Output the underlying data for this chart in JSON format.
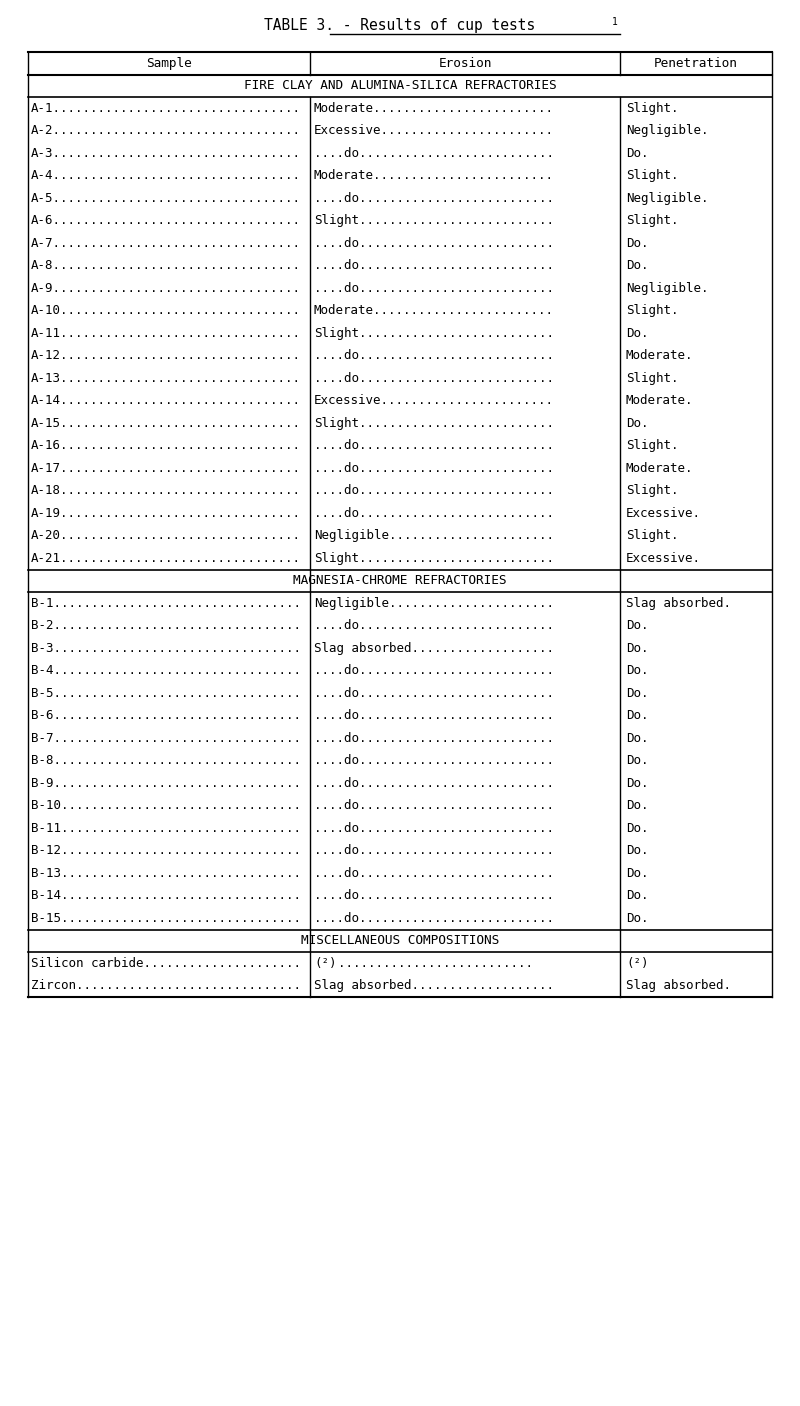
{
  "title": "TABLE 3. - Results of cup tests",
  "title_superscript": "1",
  "col_headers": [
    "Sample",
    "Erosion",
    "Penetration"
  ],
  "section1_header": "FIRE CLAY AND ALUMINA-SILICA REFRACTORIES",
  "section2_header": "MAGNESIA-CHROME REFRACTORIES",
  "section3_header": "MISCELLANEOUS COMPOSITIONS",
  "section1_rows": [
    [
      "A-1",
      "Moderate",
      "Slight."
    ],
    [
      "A-2",
      "Excessive",
      "Negligible."
    ],
    [
      "A-3",
      "....do",
      "Do."
    ],
    [
      "A-4",
      "Moderate",
      "Slight."
    ],
    [
      "A-5",
      "....do",
      "Negligible."
    ],
    [
      "A-6",
      "Slight",
      "Slight."
    ],
    [
      "A-7",
      "....do",
      "Do."
    ],
    [
      "A-8",
      "....do",
      "Do."
    ],
    [
      "A-9",
      "....do",
      "Negligible."
    ],
    [
      "A-10",
      "Moderate",
      "Slight."
    ],
    [
      "A-11",
      "Slight",
      "Do."
    ],
    [
      "A-12",
      "....do",
      "Moderate."
    ],
    [
      "A-13",
      "....do",
      "Slight."
    ],
    [
      "A-14",
      "Excessive",
      "Moderate."
    ],
    [
      "A-15",
      "Slight",
      "Do."
    ],
    [
      "A-16",
      "....do",
      "Slight."
    ],
    [
      "A-17",
      "....do",
      "Moderate."
    ],
    [
      "A-18",
      "....do",
      "Slight."
    ],
    [
      "A-19",
      "....do",
      "Excessive."
    ],
    [
      "A-20",
      "Negligible",
      "Slight."
    ],
    [
      "A-21",
      "Slight",
      "Excessive."
    ]
  ],
  "section2_rows": [
    [
      "B-1",
      "Negligible",
      "Slag absorbed."
    ],
    [
      "B-2",
      "....do",
      "Do."
    ],
    [
      "B-3",
      "Slag absorbed",
      "Do."
    ],
    [
      "B-4",
      "....do",
      "Do."
    ],
    [
      "B-5",
      "....do",
      "Do."
    ],
    [
      "B-6",
      "....do",
      "Do."
    ],
    [
      "B-7",
      "....do",
      "Do."
    ],
    [
      "B-8",
      "....do",
      "Do."
    ],
    [
      "B-9",
      "....do",
      "Do."
    ],
    [
      "B-10",
      "....do",
      "Do."
    ],
    [
      "B-11",
      "....do",
      "Do."
    ],
    [
      "B-12",
      "....do",
      "Do."
    ],
    [
      "B-13",
      "....do",
      "Do."
    ],
    [
      "B-14",
      "....do",
      "Do."
    ],
    [
      "B-15",
      "....do",
      "Do."
    ]
  ],
  "section3_rows": [
    [
      "Silicon carbide",
      "(2)",
      "(2)"
    ],
    [
      "Zircon",
      "Slag absorbed",
      "Slag absorbed."
    ]
  ],
  "bg_color": "#ffffff",
  "text_color": "#000000",
  "line_color": "#000000"
}
